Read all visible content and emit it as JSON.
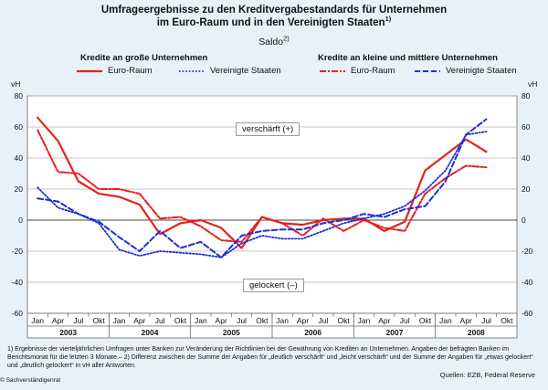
{
  "header": {
    "title_line1": "Umfrageergebnisse zu den Kreditvergabestandards für Unternehmen",
    "title_line2": "im Euro-Raum und in den Vereinigten Staaten",
    "title_sup": "1)",
    "saldo": "Saldo",
    "saldo_sup": "2)"
  },
  "legend": {
    "group_large": "Kredite an große Unternehmen",
    "group_small": "Kredite an kleine und mittlere Unternehmen",
    "large_euro": "Euro-Raum",
    "large_us": "Vereinigte Staaten",
    "small_euro": "Euro-Raum",
    "small_us": "Vereinigte Staaten"
  },
  "annotations": {
    "tightened": "verschärft (+)",
    "eased": "gelockert (–)"
  },
  "footnote": "1) Ergebnisse der vierteljährlichen Umfragen unter Banken zur Veränderung der Richtlinien bei der Gewährung von Krediten an Unternehmen. Angaben der befragten Banken im Berichtsmonat für die letzten 3 Monate.– 2) Differenz zwischen der Summe der Angaben für „deutlich verschärft“ und „leicht verschärft“ und der Summe der Angaben für „etwas gelockert“ und „deutlich gelockert“ in vH aller Antworten.",
  "sources": "Quellen: EZB, Federal Reserve",
  "copyright": "© Sachverständigenrat",
  "colors": {
    "background": "#e9f1f8",
    "plot_background": "#ffffff",
    "red": "#e8201c",
    "blue": "#1c2fd6"
  },
  "chart_data": {
    "type": "line",
    "ylabel_left": "vH",
    "ylabel_right": "vH",
    "ylim": [
      -60,
      80
    ],
    "yticks": [
      -60,
      -40,
      -20,
      0,
      20,
      40,
      60,
      80
    ],
    "month_labels": [
      "Jan",
      "Apr",
      "Jul",
      "Okt",
      "Jan",
      "Apr",
      "Jul",
      "Okt",
      "Jan",
      "Apr",
      "Jul",
      "Okt",
      "Jan",
      "Apr",
      "Jul",
      "Okt",
      "Jan",
      "Apr",
      "Jul",
      "Okt",
      "Jan",
      "Apr",
      "Jul",
      "Okt"
    ],
    "years": [
      "2003",
      "2004",
      "2005",
      "2006",
      "2007",
      "2008"
    ],
    "grid": true,
    "series": [
      {
        "name": "Kredite an große Unternehmen – Euro-Raum",
        "color": "red",
        "style": "solid",
        "x": [
          "2003-01",
          "2003-04",
          "2003-07",
          "2003-10",
          "2004-01",
          "2004-04",
          "2004-07",
          "2004-10",
          "2005-01",
          "2005-04",
          "2005-07",
          "2005-10",
          "2006-01",
          "2006-04",
          "2006-07",
          "2006-10",
          "2007-01",
          "2007-04",
          "2007-07",
          "2007-10",
          "2008-01",
          "2008-04",
          "2008-07"
        ],
        "y": [
          66,
          51,
          25,
          17,
          15,
          10,
          -9,
          -2,
          0,
          -5,
          -18,
          2,
          -2,
          -3,
          0,
          1,
          1,
          -7,
          -1,
          32,
          42,
          52,
          44
        ]
      },
      {
        "name": "Kredite an große Unternehmen – Vereinigte Staaten",
        "color": "blue",
        "style": "dotted",
        "x": [
          "2003-01",
          "2003-04",
          "2003-07",
          "2003-10",
          "2004-01",
          "2004-04",
          "2004-07",
          "2004-10",
          "2005-01",
          "2005-04",
          "2005-07",
          "2005-10",
          "2006-01",
          "2006-04",
          "2006-07",
          "2006-10",
          "2007-01",
          "2007-04",
          "2007-07",
          "2007-10",
          "2008-01",
          "2008-04",
          "2008-07"
        ],
        "y": [
          21,
          8,
          4,
          -2,
          -19,
          -23,
          -20,
          -21,
          -22,
          -24,
          -15,
          -10,
          -12,
          -12,
          -7,
          -2,
          1,
          4,
          9,
          19,
          32,
          55,
          57
        ]
      },
      {
        "name": "Kredite an kleine und mittlere Unternehmen – Euro-Raum",
        "color": "red",
        "style": "dashdot",
        "x": [
          "2003-01",
          "2003-04",
          "2003-07",
          "2003-10",
          "2004-01",
          "2004-04",
          "2004-07",
          "2004-10",
          "2005-01",
          "2005-04",
          "2005-07",
          "2005-10",
          "2006-01",
          "2006-04",
          "2006-07",
          "2006-10",
          "2007-01",
          "2007-04",
          "2007-07",
          "2007-10",
          "2008-01",
          "2008-04",
          "2008-07"
        ],
        "y": [
          58,
          31,
          30,
          20,
          20,
          17,
          1,
          2,
          -4,
          -13,
          -14,
          2,
          -2,
          -10,
          1,
          -7,
          0,
          -5,
          -7,
          17,
          27,
          35,
          34
        ]
      },
      {
        "name": "Kredite an kleine und mittlere Unternehmen – Vereinigte Staaten",
        "color": "blue",
        "style": "dashed",
        "x": [
          "2003-01",
          "2003-04",
          "2003-07",
          "2003-10",
          "2004-01",
          "2004-04",
          "2004-07",
          "2004-10",
          "2005-01",
          "2005-04",
          "2005-07",
          "2005-10",
          "2006-01",
          "2006-04",
          "2006-07",
          "2006-10",
          "2007-01",
          "2007-04",
          "2007-07",
          "2007-10",
          "2008-01",
          "2008-04",
          "2008-07"
        ],
        "y": [
          14,
          12,
          4,
          -1,
          -11,
          -20,
          -7,
          -18,
          -14,
          -24,
          -10,
          -7,
          -6,
          -6,
          -2,
          0,
          4,
          2,
          7,
          9,
          25,
          55,
          65
        ]
      }
    ]
  }
}
